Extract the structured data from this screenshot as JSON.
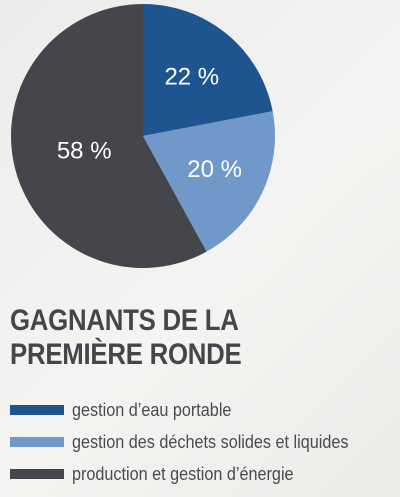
{
  "chart_data": {
    "type": "pie",
    "title_lines": [
      "GAGNANTS DE LA",
      "PREMIÈRE RONDE"
    ],
    "series": [
      {
        "name": "gestion d’eau portable",
        "value": 22,
        "label": "22 %",
        "color": "#1e5591"
      },
      {
        "name": "gestion des déchets solides et liquides",
        "value": 20,
        "label": "20 %",
        "color": "#7098c8"
      },
      {
        "name": "production et gestion d’énergie",
        "value": 58,
        "label": "58 %",
        "color": "#45464c"
      }
    ],
    "legend_position": "bottom"
  }
}
